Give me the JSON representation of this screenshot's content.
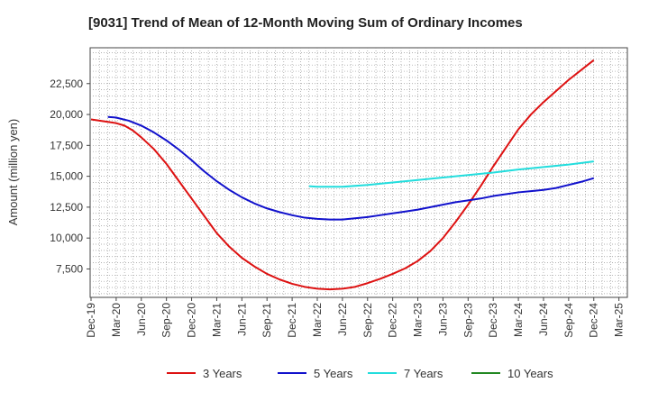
{
  "chart_data": {
    "type": "line",
    "title": "[9031]  Trend of Mean of 12-Month Moving Sum of Ordinary Incomes",
    "xlabel": "",
    "ylabel": "Amount (million yen)",
    "ylim": [
      5200,
      25400
    ],
    "yticks": [
      7500,
      10000,
      12500,
      15000,
      17500,
      20000,
      22500
    ],
    "ytick_labels": [
      "7,500",
      "10,000",
      "12,500",
      "15,000",
      "17,500",
      "20,000",
      "22,500"
    ],
    "x_tick_labels": [
      "Dec-19",
      "Mar-20",
      "Jun-20",
      "Sep-20",
      "Dec-20",
      "Mar-21",
      "Jun-21",
      "Sep-21",
      "Dec-21",
      "Mar-22",
      "Jun-22",
      "Sep-22",
      "Dec-22",
      "Mar-23",
      "Jun-23",
      "Sep-23",
      "Dec-23",
      "Mar-24",
      "Jun-24",
      "Sep-24",
      "Dec-24",
      "Mar-25"
    ],
    "x_unit": "quarter index from Dec-19",
    "grid": true,
    "legend_position": "bottom",
    "series": [
      {
        "name": "3 Years",
        "color": "#dd1111",
        "points": [
          [
            0,
            19600
          ],
          [
            0.67,
            19400
          ],
          [
            1,
            19300
          ],
          [
            1.33,
            19100
          ],
          [
            1.67,
            18700
          ],
          [
            2,
            18150
          ],
          [
            2.5,
            17200
          ],
          [
            3,
            16000
          ],
          [
            3.5,
            14600
          ],
          [
            4,
            13200
          ],
          [
            4.5,
            11800
          ],
          [
            5,
            10400
          ],
          [
            5.5,
            9300
          ],
          [
            6,
            8400
          ],
          [
            6.5,
            7700
          ],
          [
            7,
            7100
          ],
          [
            7.5,
            6650
          ],
          [
            8,
            6300
          ],
          [
            8.5,
            6050
          ],
          [
            9,
            5900
          ],
          [
            9.5,
            5850
          ],
          [
            10,
            5900
          ],
          [
            10.5,
            6050
          ],
          [
            11,
            6350
          ],
          [
            11.5,
            6700
          ],
          [
            12,
            7100
          ],
          [
            12.5,
            7550
          ],
          [
            13,
            8150
          ],
          [
            13.5,
            8950
          ],
          [
            14,
            10000
          ],
          [
            14.5,
            11300
          ],
          [
            15,
            12700
          ],
          [
            15.5,
            14200
          ],
          [
            16,
            15800
          ],
          [
            16.5,
            17300
          ],
          [
            17,
            18800
          ],
          [
            17.5,
            20000
          ],
          [
            18,
            21000
          ],
          [
            18.5,
            21900
          ],
          [
            19,
            22800
          ],
          [
            19.5,
            23600
          ],
          [
            20,
            24400
          ]
        ]
      },
      {
        "name": "5 Years",
        "color": "#1111cc",
        "points": [
          [
            0.67,
            19800
          ],
          [
            1,
            19750
          ],
          [
            1.5,
            19500
          ],
          [
            2,
            19100
          ],
          [
            2.5,
            18550
          ],
          [
            3,
            17900
          ],
          [
            3.5,
            17150
          ],
          [
            4,
            16300
          ],
          [
            4.5,
            15400
          ],
          [
            5,
            14600
          ],
          [
            5.5,
            13900
          ],
          [
            6,
            13300
          ],
          [
            6.5,
            12800
          ],
          [
            7,
            12400
          ],
          [
            7.5,
            12100
          ],
          [
            8,
            11850
          ],
          [
            8.5,
            11650
          ],
          [
            9,
            11550
          ],
          [
            9.5,
            11500
          ],
          [
            10,
            11500
          ],
          [
            10.5,
            11600
          ],
          [
            11,
            11700
          ],
          [
            11.5,
            11850
          ],
          [
            12,
            12000
          ],
          [
            12.5,
            12150
          ],
          [
            13,
            12300
          ],
          [
            13.5,
            12500
          ],
          [
            14,
            12700
          ],
          [
            14.5,
            12900
          ],
          [
            15,
            13050
          ],
          [
            15.5,
            13200
          ],
          [
            16,
            13400
          ],
          [
            16.5,
            13550
          ],
          [
            17,
            13700
          ],
          [
            17.5,
            13800
          ],
          [
            18,
            13900
          ],
          [
            18.5,
            14050
          ],
          [
            19,
            14300
          ],
          [
            19.5,
            14550
          ],
          [
            20,
            14850
          ]
        ]
      },
      {
        "name": "7 Years",
        "color": "#22dddd",
        "points": [
          [
            8.67,
            14200
          ],
          [
            9,
            14150
          ],
          [
            10,
            14150
          ],
          [
            11,
            14300
          ],
          [
            12,
            14500
          ],
          [
            13,
            14700
          ],
          [
            14,
            14900
          ],
          [
            15,
            15100
          ],
          [
            16,
            15300
          ],
          [
            17,
            15550
          ],
          [
            18,
            15750
          ],
          [
            19,
            15950
          ],
          [
            20,
            16200
          ]
        ]
      },
      {
        "name": "10 Years",
        "color": "#228822",
        "points": []
      }
    ]
  }
}
